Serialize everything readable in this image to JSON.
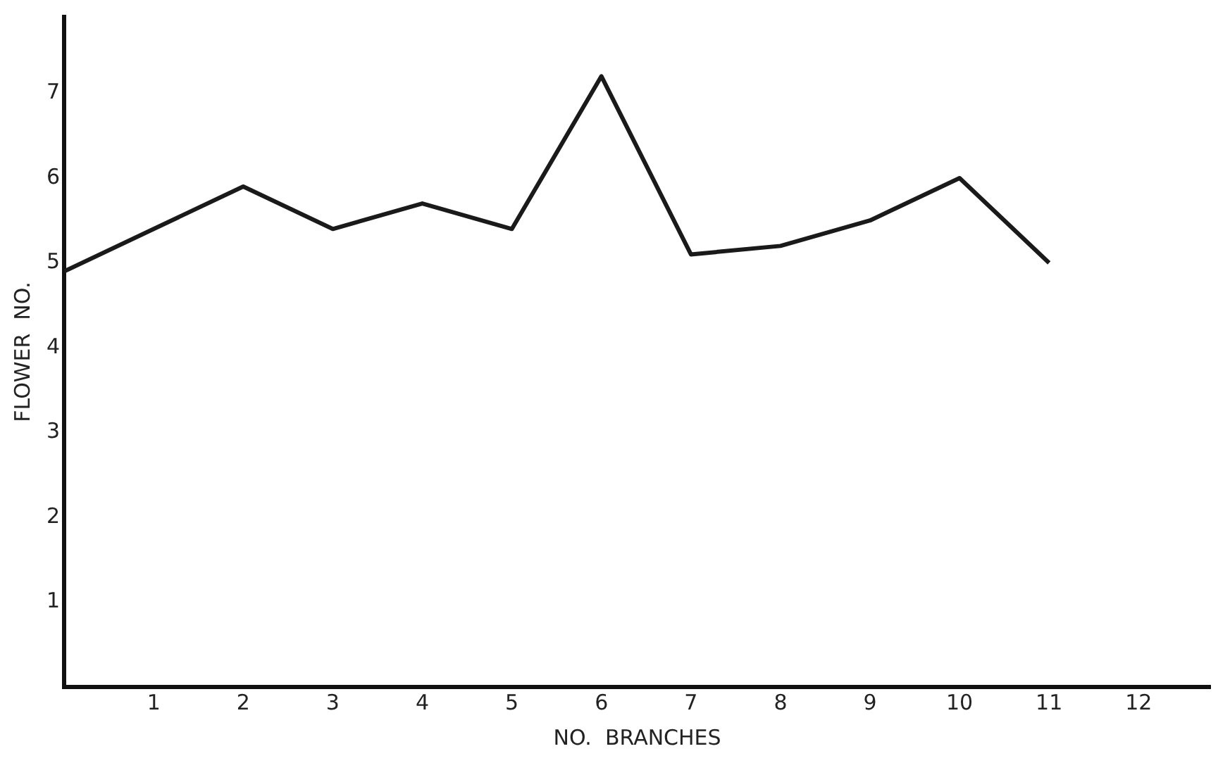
{
  "chart_data": {
    "type": "line",
    "xlabel": "NO.  BRANCHES",
    "ylabel": "FLOWER  NO.",
    "x": [
      0,
      1,
      2,
      3,
      4,
      5,
      6,
      7,
      8,
      9,
      10,
      11
    ],
    "values": [
      4.9,
      5.4,
      5.9,
      5.4,
      5.7,
      5.4,
      7.2,
      5.1,
      5.2,
      5.5,
      6.0,
      5.0
    ],
    "color": "#1a1a1a",
    "marker": "none",
    "line_style": "solid",
    "xlim": [
      0,
      12.8
    ],
    "ylim": [
      0,
      7.9
    ],
    "xticks": [
      1,
      2,
      3,
      4,
      5,
      6,
      7,
      8,
      9,
      10,
      11,
      12
    ],
    "yticks": [
      1,
      2,
      3,
      4,
      5,
      6,
      7
    ]
  }
}
